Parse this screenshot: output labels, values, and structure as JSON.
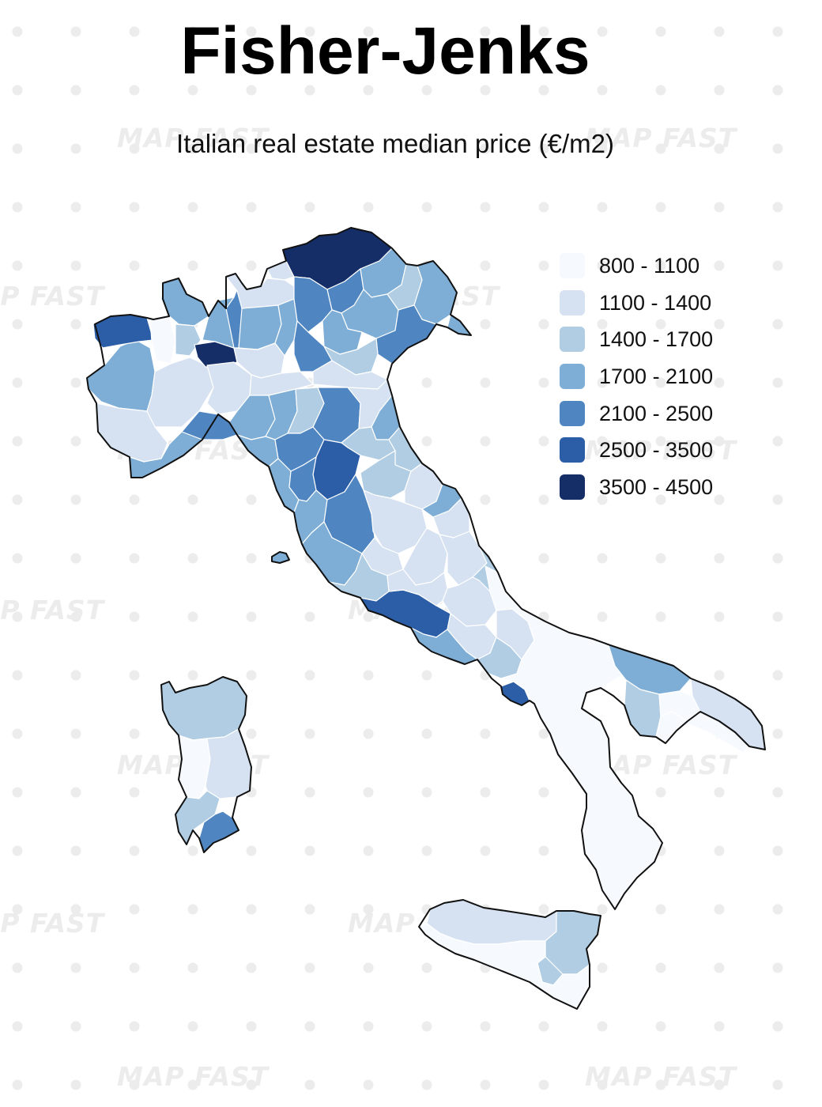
{
  "title": "Fisher-Jenks",
  "subtitle": "Italian real estate median price (€/m2)",
  "watermark": "MAP FAST",
  "legend": {
    "items": [
      {
        "label": "800 - 1100",
        "color": "#f6faff"
      },
      {
        "label": "1100 - 1400",
        "color": "#d6e2f2"
      },
      {
        "label": "1400 - 1700",
        "color": "#b0cde3"
      },
      {
        "label": "1700 - 2100",
        "color": "#7eaed6"
      },
      {
        "label": "2100 - 2500",
        "color": "#4f86c2"
      },
      {
        "label": "2500 - 3500",
        "color": "#2b5ea7"
      },
      {
        "label": "3500 - 4500",
        "color": "#152e68"
      }
    ]
  },
  "colors": {
    "outline": "#111111",
    "province_border": "#ffffff",
    "background_dots": "#ececec"
  }
}
